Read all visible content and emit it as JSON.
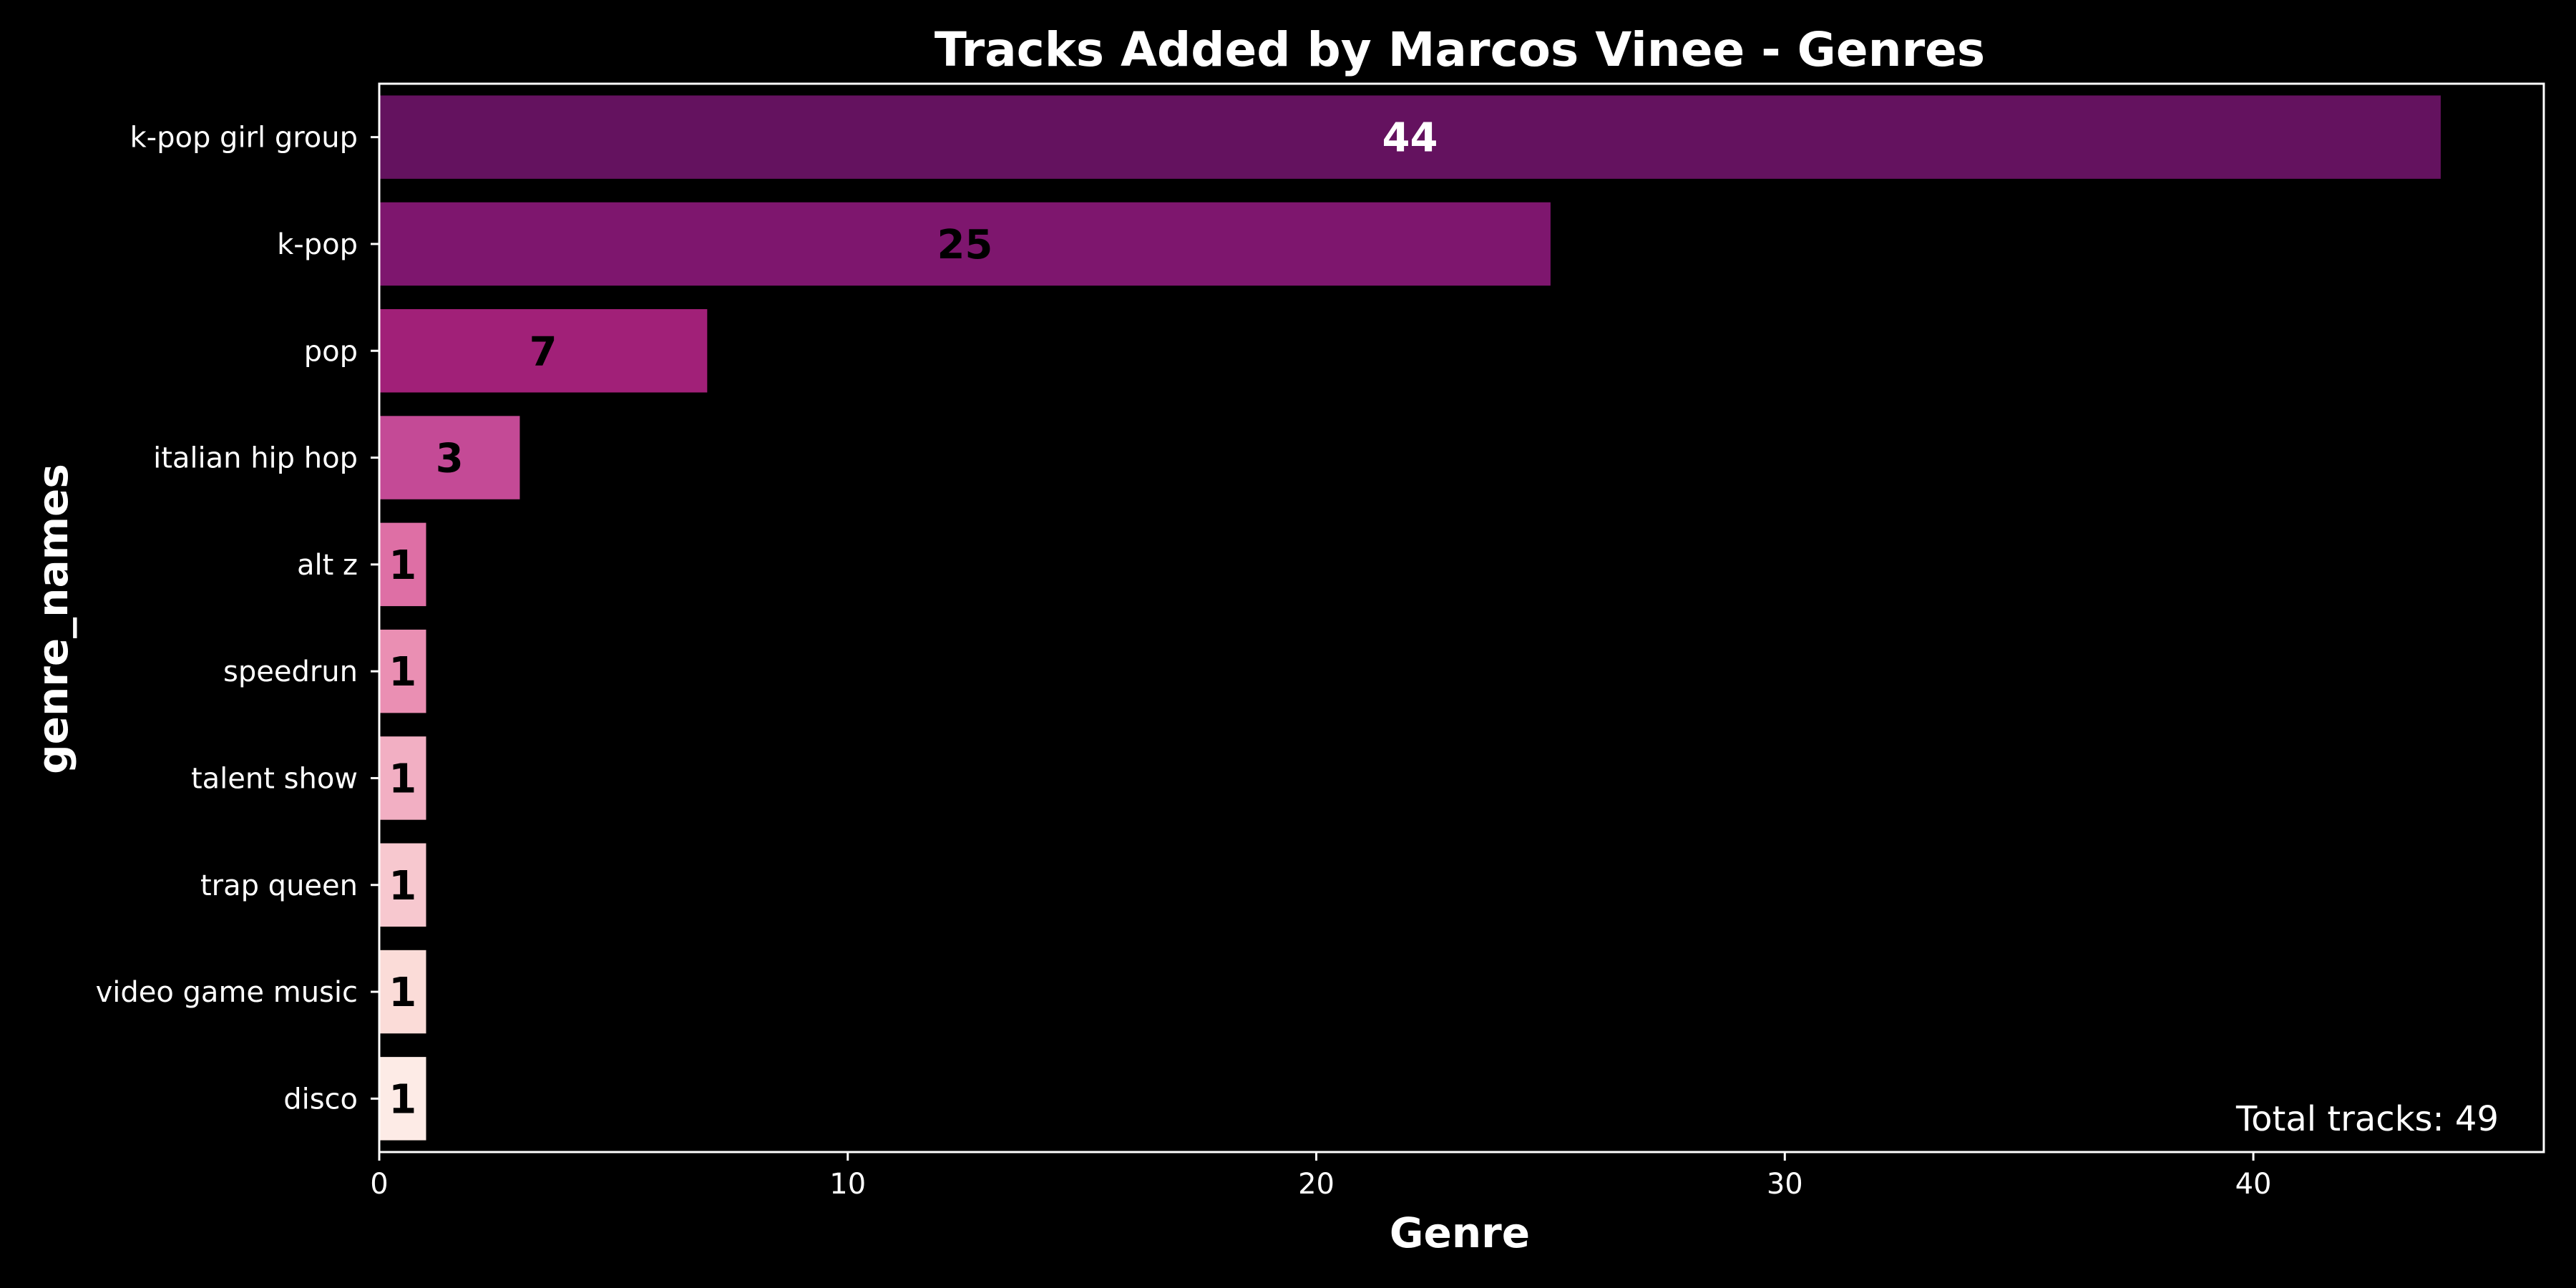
{
  "chart_data": {
    "type": "bar",
    "orientation": "horizontal",
    "title": "Tracks Added by Marcos Vinee - Genres",
    "xlabel": "Genre",
    "ylabel": "genre_names",
    "categories": [
      "k-pop girl group",
      "k-pop",
      "pop",
      "italian hip hop",
      "alt z",
      "speedrun",
      "talent show",
      "trap queen",
      "video game music",
      "disco"
    ],
    "values": [
      44,
      25,
      7,
      3,
      1,
      1,
      1,
      1,
      1,
      1
    ],
    "bar_colors": [
      "#64125f",
      "#7e166e",
      "#a12078",
      "#c44a96",
      "#de6fa5",
      "#ea8fb3",
      "#f2afc3",
      "#f7c8cf",
      "#fbdcd8",
      "#fdebe6"
    ],
    "label_colors": [
      "#ffffff",
      "#000000",
      "#000000",
      "#000000",
      "#000000",
      "#000000",
      "#000000",
      "#000000",
      "#000000",
      "#000000"
    ],
    "xlim": [
      0,
      46.2
    ],
    "xticks": [
      0,
      10,
      20,
      30,
      40
    ],
    "grid": false,
    "background": "#000000",
    "axis_color": "#ffffff",
    "annotation": "Total tracks: 49",
    "annotation_position": "bottom-right"
  }
}
